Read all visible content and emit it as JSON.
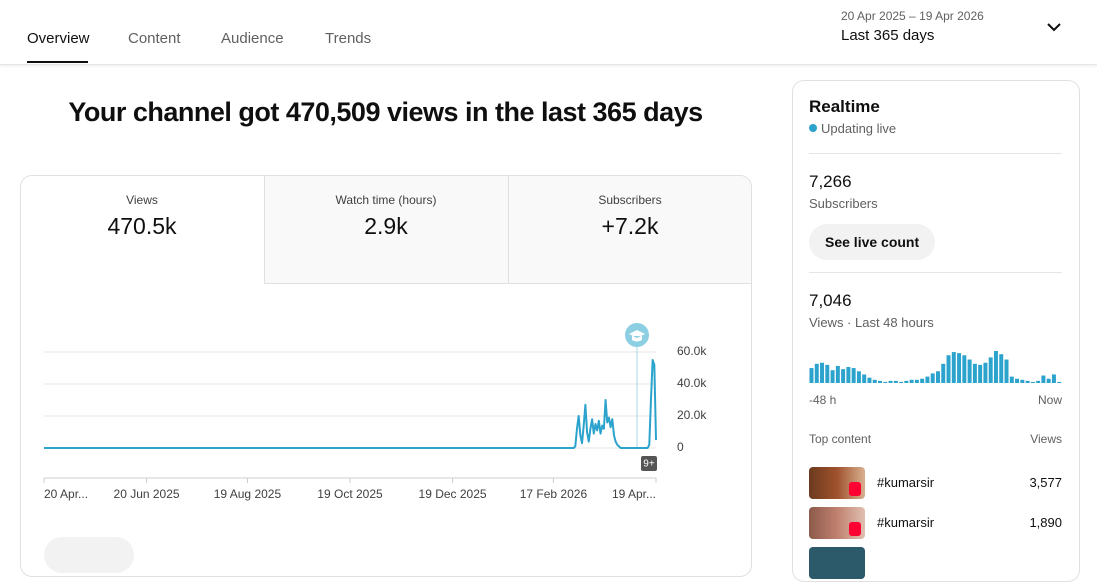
{
  "tabs": [
    "Overview",
    "Content",
    "Audience",
    "Trends"
  ],
  "date_range": {
    "dates": "20 Apr 2025 – 19 Apr 2026",
    "period": "Last 365 days"
  },
  "headline": "Your channel got 470,509 views in the last 365 days",
  "metrics": [
    {
      "label": "Views",
      "value": "470.5k"
    },
    {
      "label": "Watch time (hours)",
      "value": "2.9k"
    },
    {
      "label": "Subscribers",
      "value": "+7.2k"
    }
  ],
  "chart_data": {
    "type": "line",
    "color": "#2ba3cc",
    "x": [
      0,
      315,
      316,
      317,
      318,
      319,
      320,
      321,
      322,
      323,
      324,
      325,
      326,
      327,
      328,
      329,
      330,
      331,
      332,
      333,
      334,
      335,
      336,
      337,
      338,
      339,
      340,
      341,
      342,
      343,
      359,
      360,
      361,
      362,
      363,
      364
    ],
    "values": [
      0,
      0,
      1000,
      12000,
      20000,
      8000,
      3000,
      14000,
      27000,
      10000,
      4000,
      12000,
      18000,
      9000,
      15000,
      11000,
      17000,
      9000,
      14000,
      12000,
      30000,
      16000,
      19000,
      13000,
      18000,
      8000,
      4000,
      2000,
      1000,
      0,
      0,
      2000,
      30000,
      55000,
      52000,
      5000
    ],
    "xlim": [
      0,
      364
    ],
    "xticks": [
      {
        "value": 0,
        "label": "20 Apr..."
      },
      {
        "value": 61,
        "label": "20 Jun 2025"
      },
      {
        "value": 121,
        "label": "19 Aug 2025"
      },
      {
        "value": 182,
        "label": "19 Oct 2025"
      },
      {
        "value": 243,
        "label": "19 Dec 2025"
      },
      {
        "value": 303,
        "label": "17 Feb 2026"
      },
      {
        "value": 364,
        "label": "19 Apr..."
      }
    ],
    "ylim": [
      0,
      60000
    ],
    "yticks": [
      0,
      {
        "value": 20000,
        "label": "20.0k"
      },
      {
        "value": 40000,
        "label": "40.0k"
      },
      {
        "value": 60000,
        "label": "60.0k"
      }
    ],
    "grid": true,
    "badge": "9+"
  },
  "realtime": {
    "title": "Realtime",
    "status": "Updating live",
    "subscribers": {
      "value": "7,266",
      "label": "Subscribers"
    },
    "button": "See live count",
    "views": {
      "value": "7,046",
      "label": "Views · Last 48 hours"
    },
    "chart_data": {
      "type": "bar",
      "color": "#2ba3cc",
      "values": [
        14,
        18,
        19,
        17,
        12,
        16,
        13,
        15,
        14,
        11,
        8,
        5,
        3,
        2,
        1,
        2,
        2,
        1,
        2,
        3,
        3,
        4,
        6,
        9,
        11,
        18,
        26,
        29,
        28,
        26,
        22,
        18,
        17,
        19,
        24,
        30,
        27,
        22,
        6,
        4,
        3,
        2,
        1,
        2,
        7,
        4,
        8,
        1
      ],
      "start_label": "-48 h",
      "end_label": "Now"
    },
    "top_content": {
      "heading": "Top content",
      "views_heading": "Views",
      "items": [
        {
          "title": "#kumarsir",
          "views": "3,577"
        },
        {
          "title": "#kumarsir",
          "views": "1,890"
        }
      ]
    }
  }
}
